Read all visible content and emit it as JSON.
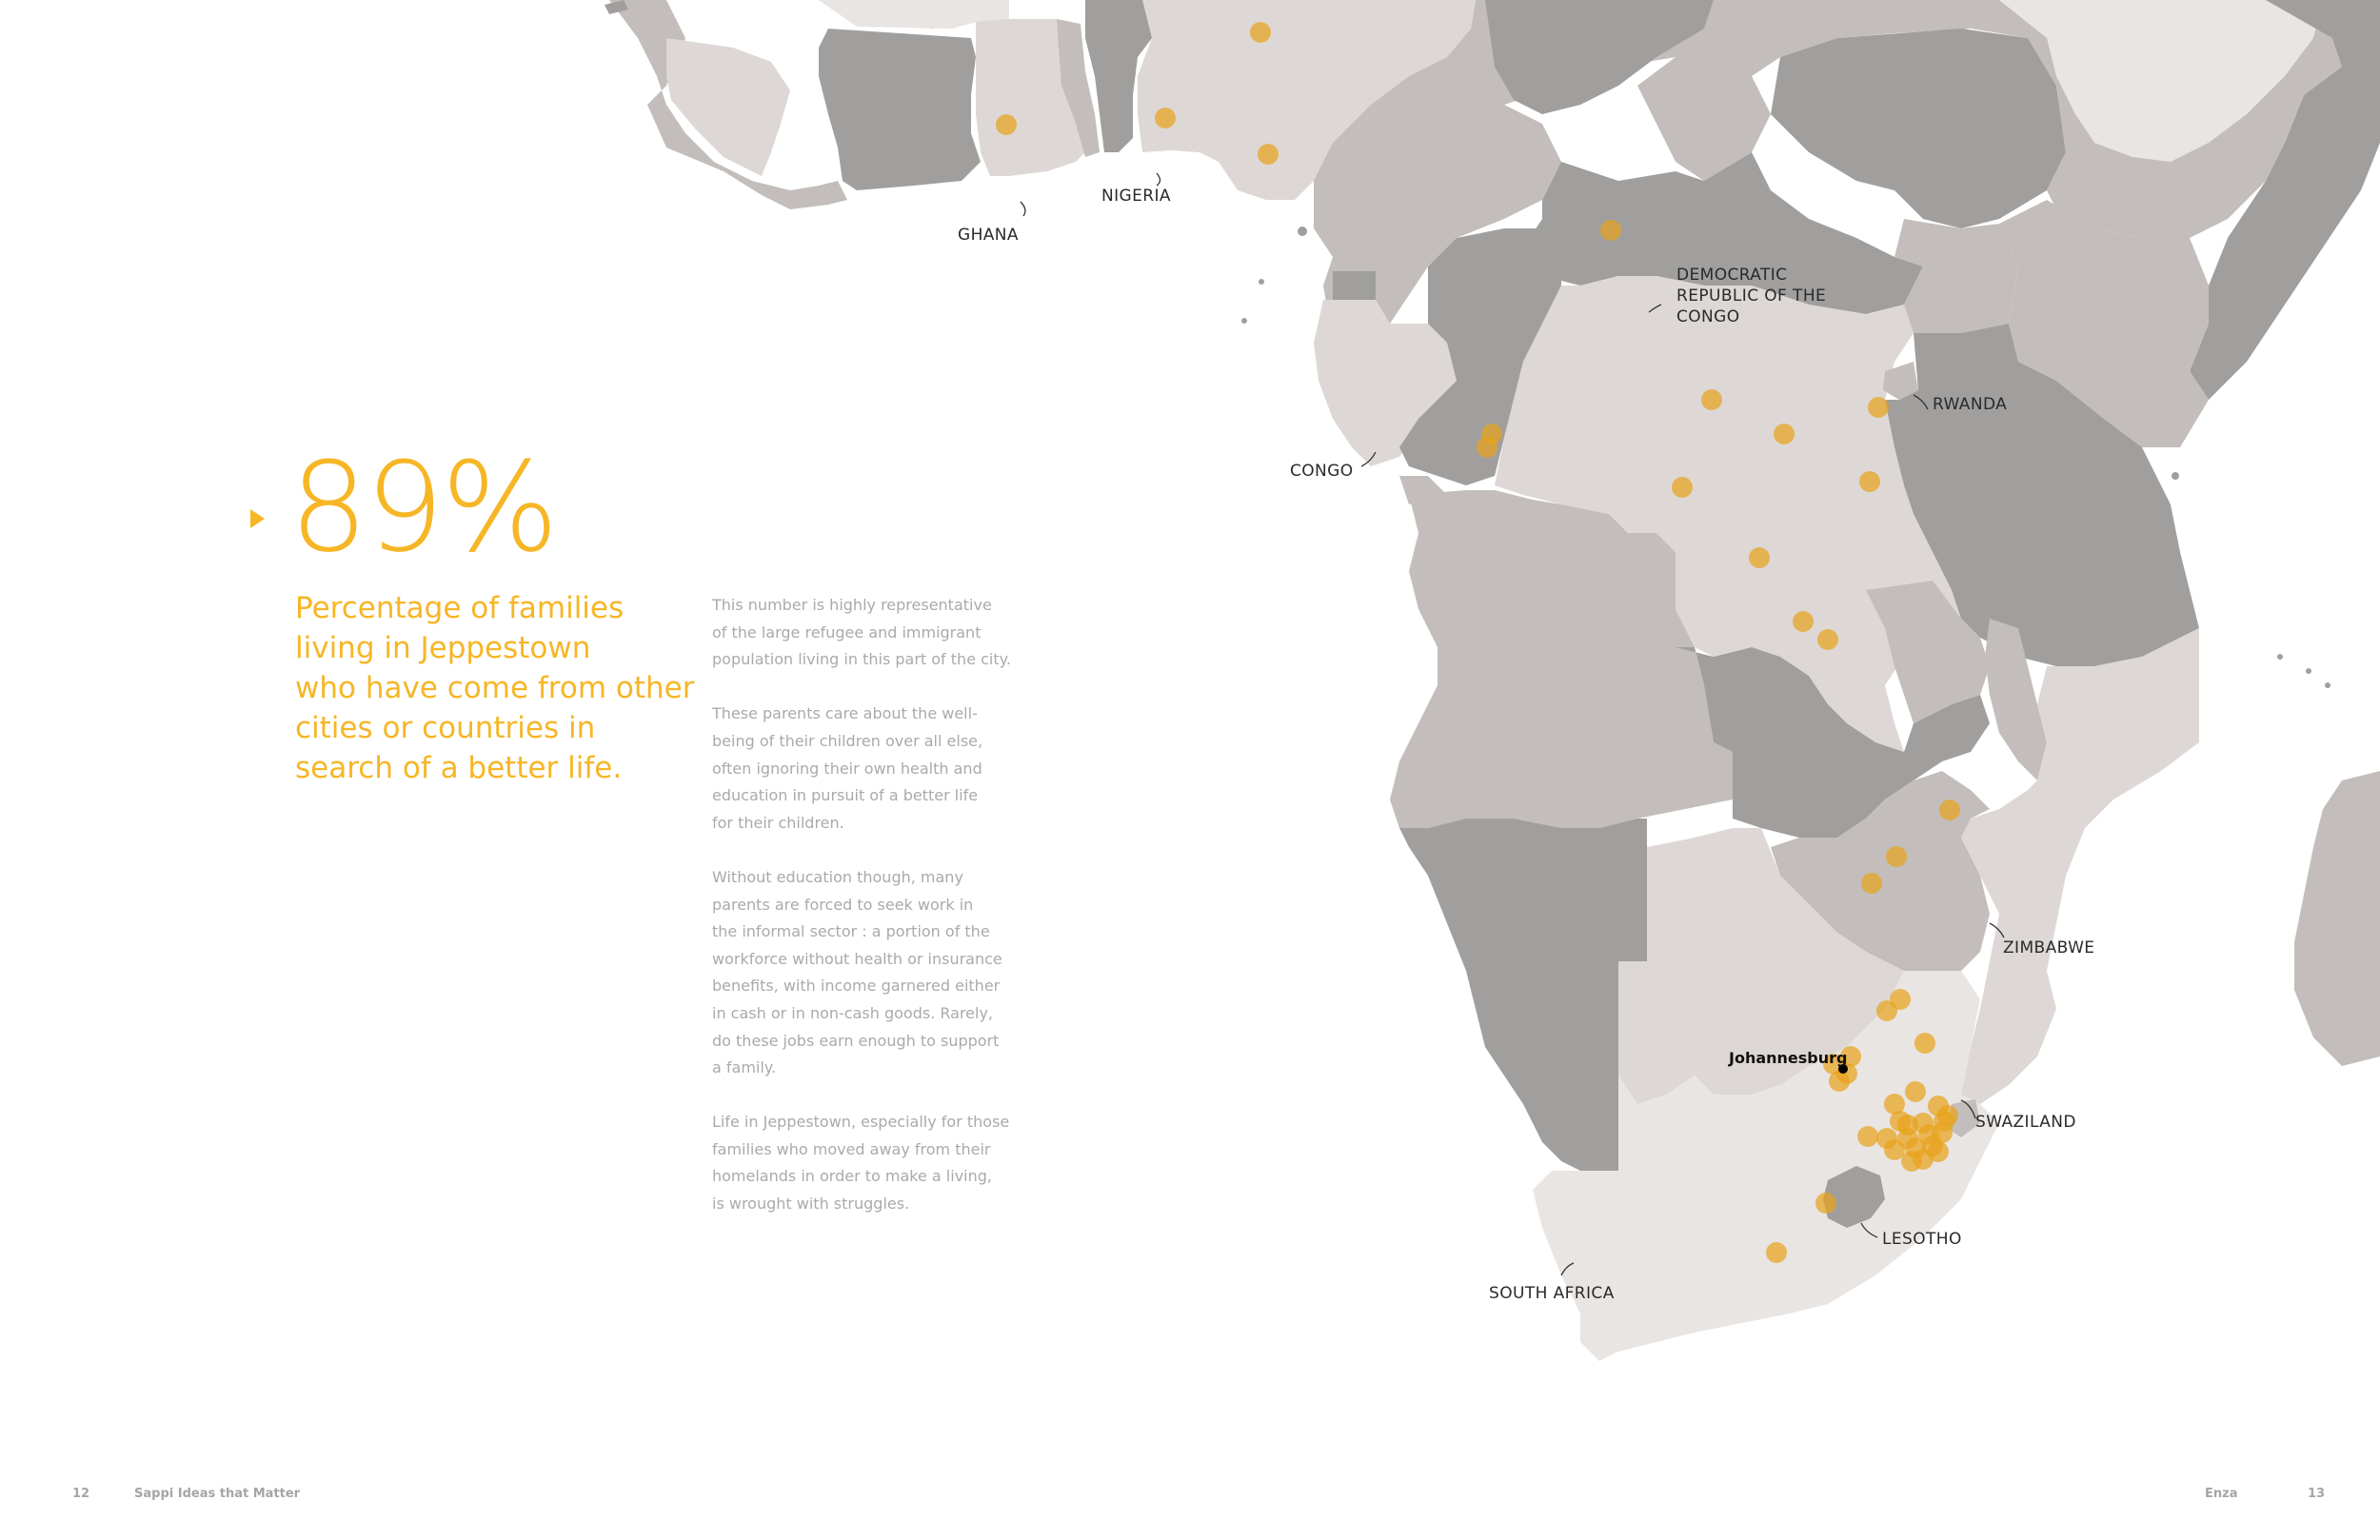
{
  "stat": {
    "value": "89%",
    "caption_lines": [
      "Percentage of families",
      "living in Jeppestown",
      "who have come from other",
      "cities or countries in",
      "search of a better life."
    ],
    "accent_color": "#f6b626"
  },
  "body_paragraphs": [
    [
      "This number is highly representative",
      "of the large refugee and immigrant",
      "population living in this part of the city."
    ],
    [
      "These parents care about the well-",
      "being of their children over all else,",
      "often ignoring their own health and",
      "education in pursuit of a better life",
      "for their children."
    ],
    [
      "Without education though, many",
      "parents are forced to seek work in",
      "the informal sector : a portion of the",
      "workforce without health or insurance",
      "benefits, with income garnered either",
      "in cash or in non-cash goods. Rarely,",
      "do these jobs earn enough to support",
      "a family."
    ],
    [
      "Life in Jeppestown, especially for those",
      "families who moved away from their",
      "homelands in order to make a living,",
      "is wrought with struggles."
    ]
  ],
  "map": {
    "country_labels": {
      "ghana": [
        "GHANA"
      ],
      "nigeria": [
        "NIGERIA"
      ],
      "drc": [
        "DEMOCRATIC",
        "REPUBLIC OF THE",
        "CONGO"
      ],
      "rwanda": [
        "RWANDA"
      ],
      "congo": [
        "CONGO"
      ],
      "zimbabwe": [
        "ZIMBABWE"
      ],
      "swaziland": [
        "SWAZILAND"
      ],
      "lesotho": [
        "LESOTHO"
      ],
      "south_africa": [
        "SOUTH AFRICA"
      ]
    },
    "city_label": "Johannesburg",
    "dot_color": "#e8a21a",
    "dot_opacity": 0.7,
    "country_colors": {
      "dark": "#a09f9e",
      "mid": "#c3bebb",
      "light": "#ddd8d6",
      "pale": "#e9e5e3"
    }
  },
  "footer": {
    "left_page": "12",
    "left_title": "Sappi Ideas that Matter",
    "right_title": "Enza",
    "right_page": "13"
  }
}
